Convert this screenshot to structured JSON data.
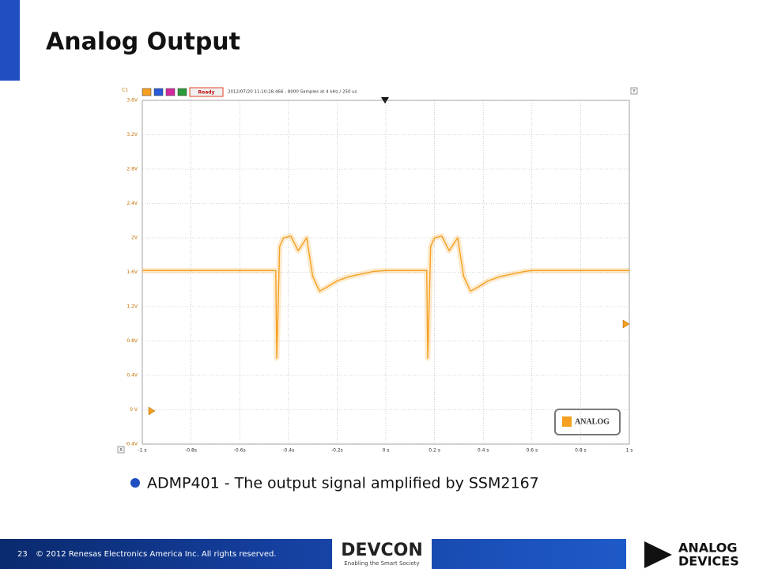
{
  "slide": {
    "title": "Analog Output",
    "bullet": "ADMP401 - The output signal amplified by SSM2167",
    "page_number": "23",
    "copyright": "© 2012 Renesas Electronics America Inc. All rights reserved.",
    "event_logo": "DEVCON",
    "event_tagline": "Enabling the Smart Society",
    "company_logo": [
      "ANALOG",
      "DEVICES"
    ]
  },
  "chart_data": {
    "type": "line",
    "channel": "C1",
    "status": "Ready",
    "header": "2012/07/20 11:10:28.466 - 8000 Samples at 4 kHz / 250 us",
    "x_axis_button": "X",
    "y_axis_button": "Y",
    "watermark": "ANALOG",
    "x": [
      -1,
      -0.452,
      -0.448,
      -0.444,
      -0.436,
      -0.42,
      -0.39,
      -0.36,
      -0.325,
      -0.3,
      -0.272,
      -0.24,
      -0.2,
      -0.15,
      -0.1,
      -0.05,
      0,
      0.168,
      0.172,
      0.176,
      0.184,
      0.2,
      0.23,
      0.26,
      0.295,
      0.32,
      0.348,
      0.38,
      0.42,
      0.47,
      0.52,
      0.57,
      0.6,
      1
    ],
    "series": [
      {
        "color": "#f5a020",
        "values": [
          1.62,
          1.62,
          0.6,
          1.0,
          1.9,
          2.0,
          2.02,
          1.85,
          2.0,
          1.55,
          1.38,
          1.43,
          1.5,
          1.55,
          1.58,
          1.61,
          1.62,
          1.62,
          0.6,
          1.0,
          1.9,
          2.0,
          2.02,
          1.85,
          2.0,
          1.55,
          1.38,
          1.43,
          1.5,
          1.55,
          1.58,
          1.61,
          1.62,
          1.62
        ]
      }
    ],
    "xlim": [
      -1,
      1
    ],
    "xticks": [
      {
        "value": -1,
        "label": "-1 s"
      },
      {
        "value": -0.8,
        "label": "-0.8s"
      },
      {
        "value": -0.6,
        "label": "-0.6s"
      },
      {
        "value": -0.4,
        "label": "-0.4s"
      },
      {
        "value": -0.2,
        "label": "-0.2s"
      },
      {
        "value": 0,
        "label": "0 s"
      },
      {
        "value": 0.2,
        "label": "0.2 s"
      },
      {
        "value": 0.4,
        "label": "0.4 s"
      },
      {
        "value": 0.6,
        "label": "0.6 s"
      },
      {
        "value": 0.8,
        "label": "0.8 s"
      },
      {
        "value": 1,
        "label": "1 s"
      }
    ],
    "ylim": [
      -0.4,
      3.6
    ],
    "yticks": [
      {
        "value": 3.6,
        "label": "3.6V"
      },
      {
        "value": 3.2,
        "label": "3.2V"
      },
      {
        "value": 2.8,
        "label": "2.8V"
      },
      {
        "value": 2.4,
        "label": "2.4V"
      },
      {
        "value": 2,
        "label": "2V"
      },
      {
        "value": 1.6,
        "label": "1.6V"
      },
      {
        "value": 1.2,
        "label": "1.2V"
      },
      {
        "value": 0.8,
        "label": "0.8V"
      },
      {
        "value": 0.4,
        "label": "0.4V"
      },
      {
        "value": 0,
        "label": "0 V"
      },
      {
        "value": -0.4,
        "label": "-0.4V"
      }
    ],
    "grid": true
  }
}
